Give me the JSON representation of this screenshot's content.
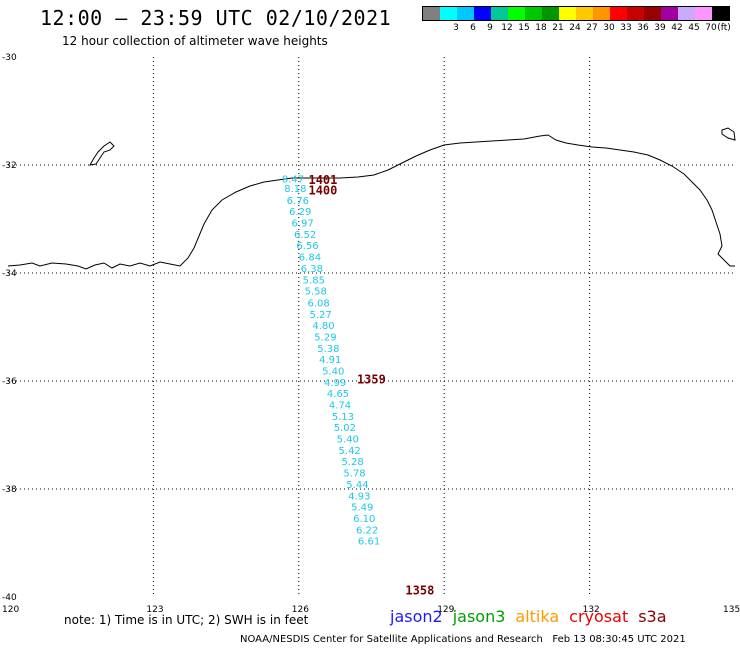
{
  "header": {
    "title": "12:00 – 23:59 UTC 02/10/2021",
    "subtitle": "12 hour collection of altimeter wave heights"
  },
  "legend": {
    "unit": "(ft)",
    "items": [
      {
        "color": "#808080",
        "label": ""
      },
      {
        "color": "#00ffff",
        "label": "3"
      },
      {
        "color": "#00c8ff",
        "label": "6"
      },
      {
        "color": "#0000ff",
        "label": "9"
      },
      {
        "color": "#00c896",
        "label": "12"
      },
      {
        "color": "#00ff00",
        "label": "15"
      },
      {
        "color": "#00c800",
        "label": "18"
      },
      {
        "color": "#009600",
        "label": "21"
      },
      {
        "color": "#ffff00",
        "label": "24"
      },
      {
        "color": "#ffc800",
        "label": "27"
      },
      {
        "color": "#ff9600",
        "label": "30"
      },
      {
        "color": "#ff0000",
        "label": "33"
      },
      {
        "color": "#c80000",
        "label": "36"
      },
      {
        "color": "#960000",
        "label": "39"
      },
      {
        "color": "#a000a0",
        "label": "42"
      },
      {
        "color": "#c8aaff",
        "label": "45"
      },
      {
        "color": "#ff96ff",
        "label": "70"
      },
      {
        "color": "#000000",
        "label": ""
      }
    ]
  },
  "axes": {
    "lat_labels": [
      "-30",
      "-32",
      "-34",
      "-36",
      "-38",
      "-40"
    ],
    "lon_labels": [
      "120",
      "123",
      "126",
      "129",
      "132",
      "135"
    ]
  },
  "wave_heights": [
    {
      "lon": 125.65,
      "lat": -32.32,
      "value": "8.47"
    },
    {
      "lon": 125.7,
      "lat": -32.5,
      "value": "8.18"
    },
    {
      "lon": 125.75,
      "lat": -32.72,
      "value": "6.76"
    },
    {
      "lon": 125.8,
      "lat": -32.93,
      "value": "6.29"
    },
    {
      "lon": 125.85,
      "lat": -33.14,
      "value": "6.97"
    },
    {
      "lon": 125.9,
      "lat": -33.35,
      "value": "6.52"
    },
    {
      "lon": 125.95,
      "lat": -33.56,
      "value": "6.56"
    },
    {
      "lon": 126.0,
      "lat": -33.77,
      "value": "6.84"
    },
    {
      "lon": 126.04,
      "lat": -33.98,
      "value": "6.38"
    },
    {
      "lon": 126.08,
      "lat": -34.19,
      "value": "5.85"
    },
    {
      "lon": 126.12,
      "lat": -34.4,
      "value": "5.58"
    },
    {
      "lon": 126.18,
      "lat": -34.62,
      "value": "6.08"
    },
    {
      "lon": 126.22,
      "lat": -34.83,
      "value": "5.27"
    },
    {
      "lon": 126.28,
      "lat": -35.04,
      "value": "4.80"
    },
    {
      "lon": 126.32,
      "lat": -35.25,
      "value": "5.29"
    },
    {
      "lon": 126.38,
      "lat": -35.46,
      "value": "5.38"
    },
    {
      "lon": 126.42,
      "lat": -35.67,
      "value": "4.91"
    },
    {
      "lon": 126.48,
      "lat": -35.88,
      "value": "5.40"
    },
    {
      "lon": 126.52,
      "lat": -36.09,
      "value": "4.99"
    },
    {
      "lon": 126.58,
      "lat": -36.3,
      "value": "4.65"
    },
    {
      "lon": 126.62,
      "lat": -36.51,
      "value": "4.74"
    },
    {
      "lon": 126.68,
      "lat": -36.72,
      "value": "5.13"
    },
    {
      "lon": 126.72,
      "lat": -36.93,
      "value": "5.02"
    },
    {
      "lon": 126.78,
      "lat": -37.14,
      "value": "5.40"
    },
    {
      "lon": 126.82,
      "lat": -37.35,
      "value": "5.42"
    },
    {
      "lon": 126.88,
      "lat": -37.56,
      "value": "5.28"
    },
    {
      "lon": 126.92,
      "lat": -37.77,
      "value": "5.78"
    },
    {
      "lon": 126.98,
      "lat": -37.98,
      "value": "5.44"
    },
    {
      "lon": 127.02,
      "lat": -38.19,
      "value": "4.93"
    },
    {
      "lon": 127.08,
      "lat": -38.4,
      "value": "5.49"
    },
    {
      "lon": 127.12,
      "lat": -38.61,
      "value": "6.10"
    },
    {
      "lon": 127.18,
      "lat": -38.82,
      "value": "6.22"
    },
    {
      "lon": 127.22,
      "lat": -39.03,
      "value": "6.61"
    }
  ],
  "time_labels": [
    {
      "lon": 126.2,
      "lat": -32.35,
      "value": "1401"
    },
    {
      "lon": 126.2,
      "lat": -32.55,
      "value": "1400"
    },
    {
      "lon": 127.2,
      "lat": -36.05,
      "value": "1359"
    },
    {
      "lon": 128.2,
      "lat": -39.95,
      "value": "1358"
    }
  ],
  "notes": {
    "text": "note: 1) Time is in UTC; 2) SWH is in feet"
  },
  "satellites": [
    {
      "name": "jason2",
      "color": "#1a1aff"
    },
    {
      "name": "jason3",
      "color": "#00a000"
    },
    {
      "name": "altika",
      "color": "#ff9900"
    },
    {
      "name": "cryosat",
      "color": "#ee0000"
    },
    {
      "name": "s3a",
      "color": "#8b0000"
    }
  ],
  "footer": {
    "credit": "NOAA/NESDIS Center for Satellite Applications and Research",
    "generated": "Feb 13 08:30:45 UTC 2021"
  }
}
